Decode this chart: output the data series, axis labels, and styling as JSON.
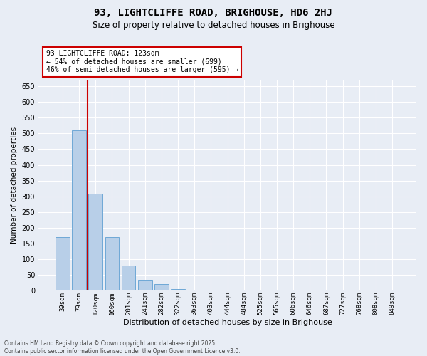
{
  "title": "93, LIGHTCLIFFE ROAD, BRIGHOUSE, HD6 2HJ",
  "subtitle": "Size of property relative to detached houses in Brighouse",
  "xlabel": "Distribution of detached houses by size in Brighouse",
  "ylabel": "Number of detached properties",
  "categories": [
    "39sqm",
    "79sqm",
    "120sqm",
    "160sqm",
    "201sqm",
    "241sqm",
    "282sqm",
    "322sqm",
    "363sqm",
    "403sqm",
    "444sqm",
    "484sqm",
    "525sqm",
    "565sqm",
    "606sqm",
    "646sqm",
    "687sqm",
    "727sqm",
    "768sqm",
    "808sqm",
    "849sqm"
  ],
  "values": [
    170,
    510,
    308,
    170,
    80,
    35,
    22,
    5,
    2,
    0,
    0,
    0,
    0,
    0,
    0,
    0,
    0,
    0,
    0,
    0,
    2
  ],
  "bar_color": "#b8cfe8",
  "bar_edge_color": "#6fa8d6",
  "vline_index": 1.5,
  "vline_color": "#cc0000",
  "annotation_text": "93 LIGHTCLIFFE ROAD: 123sqm\n← 54% of detached houses are smaller (699)\n46% of semi-detached houses are larger (595) →",
  "annotation_box_facecolor": "#ffffff",
  "annotation_box_edgecolor": "#cc0000",
  "ylim": [
    0,
    670
  ],
  "yticks": [
    0,
    50,
    100,
    150,
    200,
    250,
    300,
    350,
    400,
    450,
    500,
    550,
    600,
    650
  ],
  "background_color": "#e8edf5",
  "grid_color": "#ffffff",
  "footer_line1": "Contains HM Land Registry data © Crown copyright and database right 2025.",
  "footer_line2": "Contains public sector information licensed under the Open Government Licence v3.0."
}
